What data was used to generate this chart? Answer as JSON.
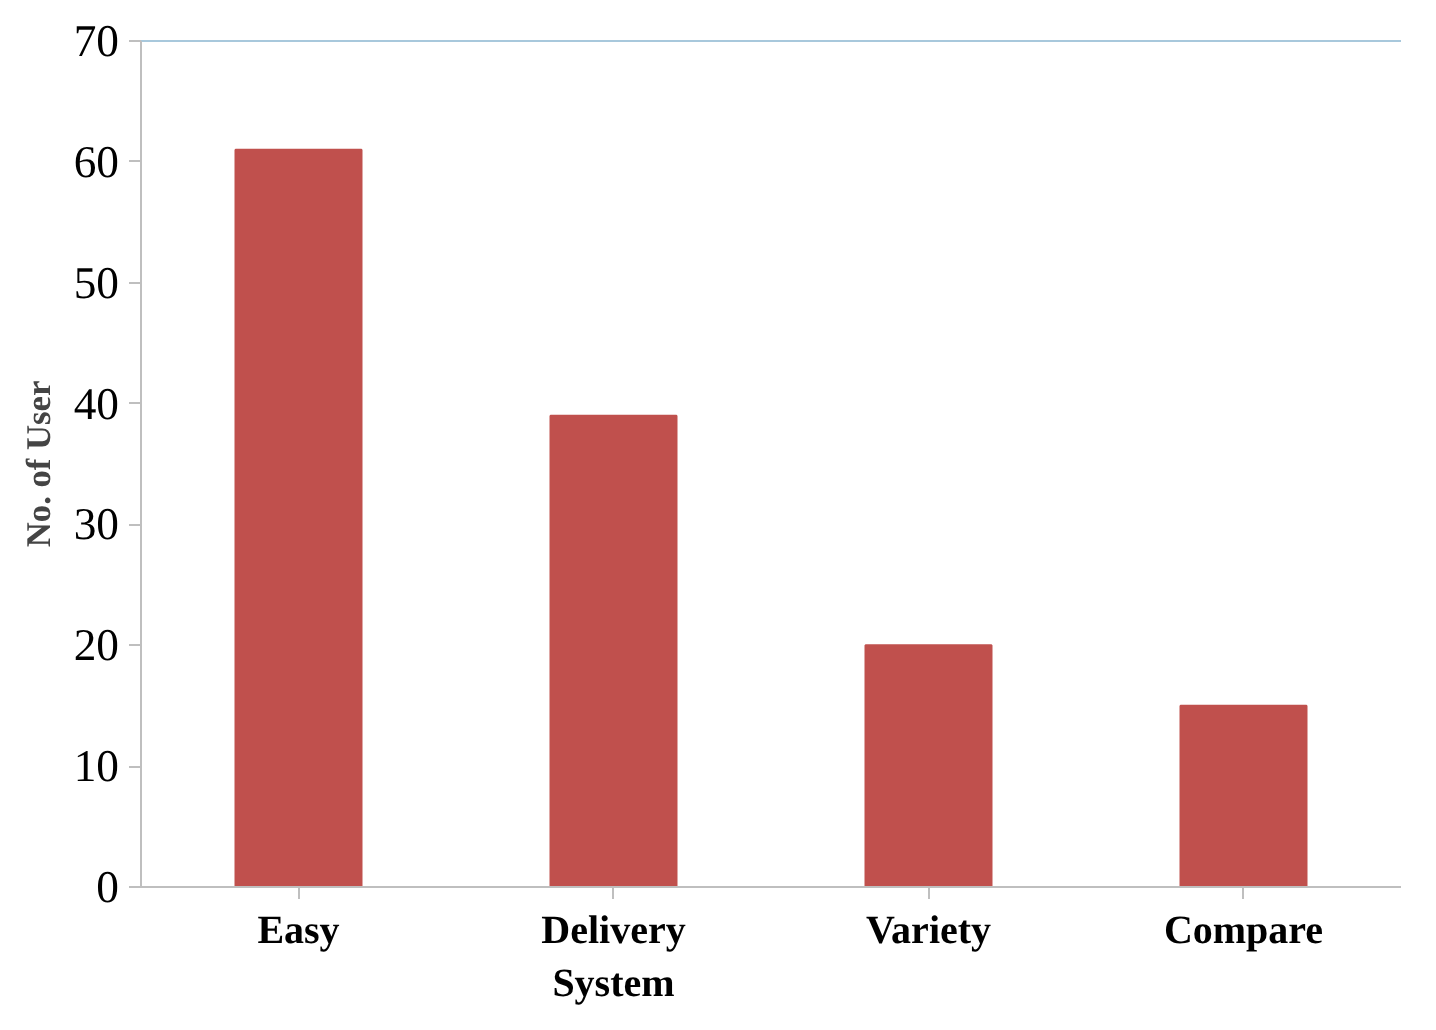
{
  "chart_data": {
    "type": "bar",
    "ylabel": "No. of User",
    "categories": [
      "Easy",
      "Delivery System",
      "Variety",
      "Compare"
    ],
    "values": [
      61,
      39,
      20,
      15
    ],
    "color": "#c0504d",
    "ylim": [
      0,
      70
    ],
    "yticks": [
      0,
      10,
      20,
      30,
      40,
      50,
      60,
      70
    ],
    "grid": false
  }
}
